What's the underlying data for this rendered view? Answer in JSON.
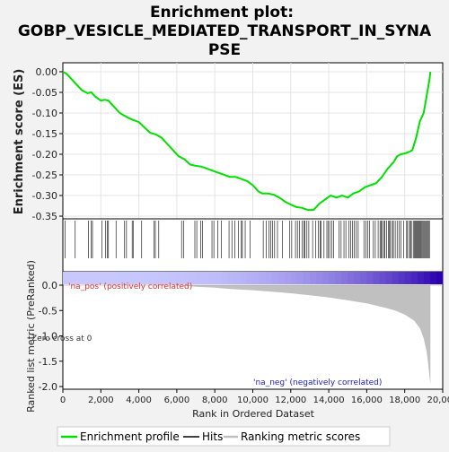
{
  "chart_data": {
    "type": "line",
    "title_line1": "Enrichment plot:",
    "title_line2": "GOBP_VESICLE_MEDIATED_TRANSPORT_IN_SYNA",
    "title_line3": "PSE",
    "es_panel": {
      "ylabel": "Enrichment score (ES)",
      "ylim": [
        -0.36,
        0.02
      ],
      "yticks": [
        0.0,
        -0.05,
        -0.1,
        -0.15,
        -0.2,
        -0.25,
        -0.3,
        -0.35
      ],
      "ytick_labels": [
        "0.00",
        "-0.05",
        "-0.10",
        "-0.15",
        "-0.20",
        "-0.25",
        "-0.30",
        "-0.35"
      ],
      "series": [
        {
          "name": "Enrichment profile",
          "color": "#00e000",
          "x": [
            0,
            200,
            500,
            800,
            1000,
            1300,
            1500,
            1700,
            2000,
            2200,
            2400,
            2600,
            2800,
            3000,
            3300,
            3600,
            4000,
            4300,
            4600,
            4900,
            5200,
            5500,
            5800,
            6100,
            6400,
            6700,
            7000,
            7300,
            7600,
            7900,
            8200,
            8500,
            8800,
            9100,
            9400,
            9700,
            10000,
            10300,
            10500,
            10800,
            11100,
            11400,
            11700,
            12000,
            12300,
            12600,
            12900,
            13200,
            13500,
            13800,
            14100,
            14400,
            14700,
            15000,
            15300,
            15600,
            15900,
            16200,
            16500,
            16800,
            17100,
            17400,
            17600,
            17800,
            18000,
            18200,
            18400,
            18600,
            18800,
            19000,
            19150,
            19300,
            19350
          ],
          "y": [
            0.0,
            -0.005,
            -0.02,
            -0.035,
            -0.045,
            -0.052,
            -0.05,
            -0.06,
            -0.07,
            -0.068,
            -0.07,
            -0.08,
            -0.09,
            -0.1,
            -0.108,
            -0.115,
            -0.122,
            -0.135,
            -0.148,
            -0.152,
            -0.16,
            -0.175,
            -0.19,
            -0.205,
            -0.212,
            -0.225,
            -0.228,
            -0.23,
            -0.235,
            -0.24,
            -0.245,
            -0.25,
            -0.255,
            -0.255,
            -0.26,
            -0.265,
            -0.275,
            -0.29,
            -0.295,
            -0.295,
            -0.298,
            -0.305,
            -0.315,
            -0.322,
            -0.328,
            -0.33,
            -0.335,
            -0.335,
            -0.32,
            -0.31,
            -0.3,
            -0.305,
            -0.3,
            -0.305,
            -0.295,
            -0.29,
            -0.28,
            -0.275,
            -0.27,
            -0.255,
            -0.235,
            -0.22,
            -0.205,
            -0.2,
            -0.198,
            -0.195,
            -0.19,
            -0.16,
            -0.12,
            -0.1,
            -0.06,
            -0.02,
            0.0
          ]
        }
      ]
    },
    "hits_panel": {
      "legend_name": "Hits",
      "hit_positions": [
        120,
        650,
        1350,
        1500,
        1560,
        2050,
        2250,
        2350,
        2400,
        2800,
        3250,
        3350,
        3650,
        3700,
        4150,
        4800,
        4870,
        5050,
        6250,
        6350,
        6950,
        7050,
        7250,
        7350,
        7850,
        7950,
        8150,
        8350,
        8750,
        8900,
        9050,
        9250,
        9400,
        9450,
        9600,
        9850,
        10550,
        10700,
        10850,
        10950,
        11050,
        11150,
        11300,
        11550,
        11950,
        12050,
        12250,
        12350,
        12450,
        12600,
        12700,
        12750,
        12850,
        12950,
        13150,
        13300,
        13450,
        13550,
        13600,
        13750,
        13900,
        13980,
        14050,
        14150,
        14250,
        14550,
        14650,
        14800,
        14900,
        15050,
        15150,
        15250,
        15350,
        15450,
        15550,
        15850,
        15950,
        16050,
        16150,
        16350,
        16450,
        16600,
        16700,
        16750,
        16800,
        16900,
        16950,
        17050,
        17150,
        17200,
        17250,
        17350,
        17400,
        17500,
        17600,
        17700,
        17800,
        17950,
        18100,
        18150,
        18250,
        18300,
        18350,
        18450,
        18500,
        18550,
        18600,
        18650,
        18700,
        18750,
        18800,
        18850,
        18900,
        18950,
        19000,
        19050,
        19100,
        19150,
        19200,
        19250,
        19300
      ]
    },
    "rank_panel": {
      "xlabel": "Rank in Ordered Dataset",
      "ylabel": "Ranked list metric (PreRanked)",
      "xlim": [
        0,
        20000
      ],
      "xticks": [
        0,
        2000,
        4000,
        6000,
        8000,
        10000,
        12000,
        14000,
        16000,
        18000,
        20000
      ],
      "xtick_labels": [
        "0",
        "2,000",
        "4,000",
        "6,000",
        "8,000",
        "10,000",
        "12,000",
        "14,000",
        "16,000",
        "18,000",
        "20,000"
      ],
      "ylim": [
        -2.0,
        0.25
      ],
      "yticks": [
        0.0,
        -0.5,
        -1.0,
        -1.5,
        -2.0
      ],
      "ytick_labels": [
        "0.0",
        "-0.5",
        "-1.0",
        "-1.5",
        "-2.0"
      ],
      "metric_x": [
        0,
        500,
        1000,
        2000,
        3000,
        4000,
        5000,
        6000,
        7000,
        8000,
        9000,
        10000,
        11000,
        12000,
        13000,
        14000,
        15000,
        16000,
        17000,
        17500,
        18000,
        18500,
        18800,
        19000,
        19150,
        19250,
        19300,
        19350
      ],
      "metric_y": [
        0.0,
        0.0,
        0.0,
        0.0,
        0.0,
        0.0,
        0.0,
        0.0,
        -0.03,
        -0.05,
        -0.08,
        -0.1,
        -0.13,
        -0.16,
        -0.2,
        -0.24,
        -0.3,
        -0.36,
        -0.45,
        -0.5,
        -0.58,
        -0.7,
        -0.85,
        -1.05,
        -1.3,
        -1.6,
        -1.8,
        -1.95
      ],
      "pos_label": "'na_pos' (positively correlated)",
      "neg_label": "'na_neg' (negatively correlated)",
      "zero_cross_label": "Zero cross at 0",
      "series_name": "Ranking metric scores"
    },
    "colors": {
      "profile": "#00e000",
      "hits": "#000000",
      "metric_fill": "#c0c0c0",
      "pos_label": "#e03030",
      "neg_label": "#2020c0",
      "heat_pos": "#c8c8ff",
      "heat_neg": "#2a00b0"
    },
    "legend": {
      "profile_label": "Enrichment profile",
      "hits_label": "Hits",
      "metric_label": "Ranking metric scores"
    }
  }
}
